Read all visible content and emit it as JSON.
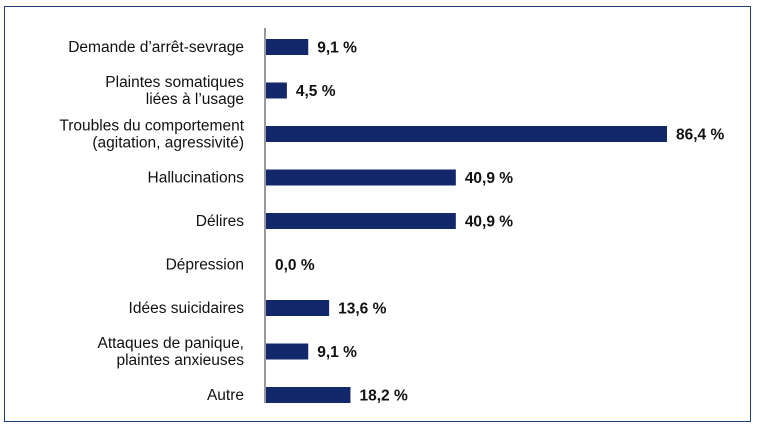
{
  "chart_data": {
    "type": "bar",
    "orientation": "horizontal",
    "categories": [
      [
        "Demande d’arrêt-sevrage"
      ],
      [
        "Plaintes somatiques",
        "liées à l’usage"
      ],
      [
        "Troubles du comportement",
        "(agitation, agressivité)"
      ],
      [
        "Hallucinations"
      ],
      [
        "Délires"
      ],
      [
        "Dépression"
      ],
      [
        "Idées suicidaires"
      ],
      [
        "Attaques de panique,",
        "plaintes anxieuses"
      ],
      [
        "Autre"
      ]
    ],
    "values": [
      9.1,
      4.5,
      86.4,
      40.9,
      40.9,
      0.0,
      13.6,
      9.1,
      18.2
    ],
    "value_labels": [
      "9,1 %",
      "4,5 %",
      "86,4 %",
      "40,9 %",
      "40,9 %",
      "0,0 %",
      "13,6 %",
      "9,1 %",
      "18,2 %"
    ],
    "bar_color": "#13286a",
    "frame_color": "#1f3f72",
    "xlim": [
      0,
      86.4
    ],
    "grid": false,
    "legend": "none",
    "title": "",
    "xlabel": "",
    "ylabel": ""
  }
}
